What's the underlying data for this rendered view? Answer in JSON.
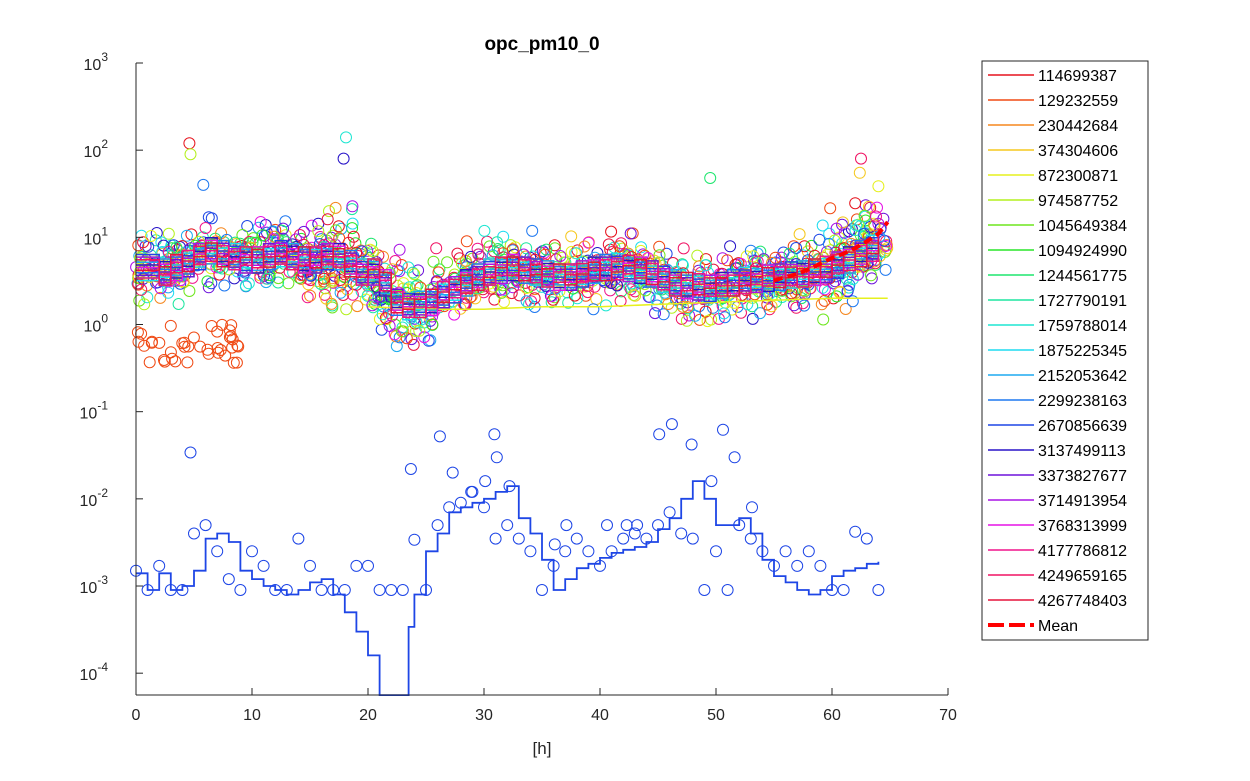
{
  "chart_data": {
    "type": "scatter",
    "title": "opc_pm10_0",
    "xlabel": "[h]",
    "ylabel": "",
    "xlim": [
      0,
      70
    ],
    "ylim": [
      5.62e-05,
      1000
    ],
    "yscale": "log",
    "x_ticks": [
      "0",
      "10",
      "20",
      "30",
      "40",
      "50",
      "60",
      "70"
    ],
    "y_ticks": [
      {
        "value": 0.0001,
        "base": "10",
        "exp": "-4"
      },
      {
        "value": 0.001,
        "base": "10",
        "exp": "-3"
      },
      {
        "value": 0.01,
        "base": "10",
        "exp": "-2"
      },
      {
        "value": 0.1,
        "base": "10",
        "exp": "-1"
      },
      {
        "value": 1,
        "base": "10",
        "exp": "0"
      },
      {
        "value": 10,
        "base": "10",
        "exp": "1"
      },
      {
        "value": 100,
        "base": "10",
        "exp": "2"
      },
      {
        "value": 1000,
        "base": "10",
        "exp": "3"
      }
    ],
    "grid": false,
    "legend_position": "outside-right",
    "series": [
      {
        "name": "114699387",
        "color": "#e6141e"
      },
      {
        "name": "129232559",
        "color": "#f04a14"
      },
      {
        "name": "230442684",
        "color": "#f5871e"
      },
      {
        "name": "374304606",
        "color": "#f5c81e"
      },
      {
        "name": "872300871",
        "color": "#e6f01e"
      },
      {
        "name": "974587752",
        "color": "#b4f01e"
      },
      {
        "name": "1045649384",
        "color": "#6ee61e"
      },
      {
        "name": "1094924990",
        "color": "#28e628"
      },
      {
        "name": "1244561775",
        "color": "#1ee66e"
      },
      {
        "name": "1727790191",
        "color": "#1ee6a0"
      },
      {
        "name": "1759788014",
        "color": "#1ee6d2"
      },
      {
        "name": "1875225345",
        "color": "#1edcf0"
      },
      {
        "name": "2152053642",
        "color": "#1eaaf0"
      },
      {
        "name": "2299238163",
        "color": "#1e78f0"
      },
      {
        "name": "2670856639",
        "color": "#1e46e6"
      },
      {
        "name": "3137499113",
        "color": "#2814c8"
      },
      {
        "name": "3373827677",
        "color": "#6e14dc"
      },
      {
        "name": "3714913954",
        "color": "#aa14e6"
      },
      {
        "name": "3768313999",
        "color": "#e614e6"
      },
      {
        "name": "4177786812",
        "color": "#f0148c"
      },
      {
        "name": "4249659165",
        "color": "#f01464"
      },
      {
        "name": "4267748403",
        "color": "#e6143c"
      },
      {
        "name": "Mean",
        "color": "#ff0000",
        "style": "dashed"
      }
    ],
    "lines": {
      "upper_line_x": [
        0,
        2,
        3,
        4,
        5,
        6,
        7,
        8,
        9,
        10,
        11,
        12,
        13,
        14,
        15,
        16,
        17,
        18,
        19,
        20,
        21,
        22,
        23,
        24,
        25,
        26,
        27,
        28,
        29,
        30,
        31,
        32,
        33,
        34,
        35,
        36,
        37,
        38,
        39,
        40,
        41,
        42,
        43,
        44,
        45,
        46,
        47,
        48,
        49,
        50,
        51,
        52,
        53,
        54,
        55,
        56,
        57,
        58,
        59,
        60,
        61,
        62,
        63,
        64
      ],
      "upper_line_y": [
        4.5,
        4,
        4.5,
        5,
        6,
        7,
        6.5,
        6,
        5.5,
        5.5,
        6,
        6.5,
        6,
        5.5,
        5.5,
        6,
        6,
        5,
        4,
        4,
        3,
        1.8,
        1.6,
        1.7,
        1.8,
        2.2,
        2.5,
        3,
        3.5,
        4,
        4.2,
        4.5,
        4.2,
        4,
        3.8,
        3.5,
        3.5,
        3.8,
        4.2,
        4.5,
        4.6,
        4.4,
        4.2,
        3.8,
        3.3,
        3,
        2.8,
        2.7,
        2.6,
        2.8,
        3,
        3.2,
        3.3,
        3.4,
        3.5,
        3.7,
        3.8,
        4,
        4.3,
        4.8,
        5.5,
        6.5,
        7.5,
        9
      ],
      "mean_x": [
        55,
        56,
        57,
        58,
        59,
        60,
        61,
        62,
        63,
        64,
        64.8
      ],
      "mean_y": [
        3.2,
        3.5,
        3.8,
        4.3,
        5,
        5.8,
        6.5,
        7.5,
        9,
        11,
        15
      ],
      "yellow_x": [
        20,
        25,
        30,
        35,
        40,
        45,
        50,
        55,
        60,
        64.8
      ],
      "yellow_y": [
        1.6,
        1.5,
        1.5,
        1.6,
        1.6,
        1.7,
        1.8,
        1.9,
        2,
        2
      ],
      "lower_step_x": [
        0,
        1,
        2,
        3,
        4,
        5,
        6,
        7,
        8,
        9,
        10,
        11,
        12,
        13,
        14,
        15,
        16,
        17,
        18,
        19,
        20,
        21,
        22,
        23,
        23.5,
        24,
        25,
        26,
        27,
        28,
        29,
        30,
        31,
        32,
        33,
        34,
        35,
        36,
        37,
        38,
        39,
        40,
        41,
        42,
        43,
        44,
        45,
        46,
        47,
        48,
        49,
        50,
        51,
        52,
        53,
        54,
        55,
        56,
        57,
        58,
        59,
        60,
        61,
        62,
        63,
        64
      ],
      "lower_step_y": [
        0.0014,
        0.0009,
        0.0014,
        0.0009,
        0.001,
        0.0015,
        0.0035,
        0.004,
        0.0032,
        0.0015,
        0.0012,
        0.001,
        0.0009,
        0.0008,
        0.0009,
        0.0011,
        0.0012,
        0.0008,
        0.0005,
        0.0003,
        0.00016,
        5.6e-05,
        5.6e-05,
        5.6e-05,
        0.00034,
        0.0008,
        0.0025,
        0.004,
        0.007,
        0.008,
        0.009,
        0.01,
        0.012,
        0.014,
        0.006,
        0.004,
        0.002,
        0.0009,
        0.0012,
        0.0016,
        0.0018,
        0.0021,
        0.0024,
        0.0026,
        0.0028,
        0.0032,
        0.0045,
        0.006,
        0.01,
        0.016,
        0.01,
        0.005,
        0.005,
        0.006,
        0.004,
        0.002,
        0.0013,
        0.0011,
        0.0009,
        0.0008,
        0.0009,
        0.0013,
        0.0015,
        0.0016,
        0.0018,
        0.0019
      ]
    },
    "lower_points": {
      "x": [
        0,
        1,
        2,
        3,
        4,
        5,
        6,
        7,
        8,
        9,
        10,
        11,
        12,
        13,
        14,
        15,
        16,
        17,
        18,
        19,
        20,
        21,
        22,
        23,
        24,
        25,
        26,
        27,
        28,
        29,
        30,
        31,
        32,
        33,
        34,
        35,
        36,
        37,
        38,
        39,
        40,
        41,
        42,
        43,
        44,
        45,
        46,
        47,
        48,
        49,
        50,
        51,
        52,
        53,
        54,
        55,
        56,
        57,
        58,
        59,
        60,
        61,
        62,
        63,
        64,
        4.7,
        26.2,
        30.9,
        23.7,
        27.3,
        31.1,
        45.1,
        46.2,
        47.9,
        50.6,
        51.6,
        49.6,
        30.1,
        28.9,
        32.2,
        42.3,
        43.2,
        53.1,
        37.1,
        36.1,
        40.6
      ],
      "y": [
        0.0015,
        0.0009,
        0.0017,
        0.0009,
        0.0009,
        0.004,
        0.005,
        0.0025,
        0.0012,
        0.0009,
        0.0025,
        0.0017,
        0.0009,
        0.0009,
        0.0035,
        0.0017,
        0.0009,
        0.0009,
        0.0009,
        0.0017,
        0.0017,
        0.0009,
        0.0009,
        0.0009,
        0.0034,
        0.0009,
        0.005,
        0.008,
        0.009,
        0.012,
        0.008,
        0.0035,
        0.005,
        0.0035,
        0.0025,
        0.0009,
        0.0017,
        0.0025,
        0.0035,
        0.0025,
        0.0017,
        0.0025,
        0.0035,
        0.004,
        0.0035,
        0.005,
        0.007,
        0.004,
        0.0035,
        0.0009,
        0.0025,
        0.0009,
        0.005,
        0.0035,
        0.0025,
        0.0017,
        0.0025,
        0.0017,
        0.0025,
        0.0017,
        0.0009,
        0.0009,
        0.0042,
        0.0035,
        0.0009,
        0.034,
        0.052,
        0.055,
        0.022,
        0.02,
        0.03,
        0.055,
        0.072,
        0.042,
        0.062,
        0.03,
        0.016,
        0.016,
        0.012,
        0.014,
        0.005,
        0.005,
        0.008,
        0.005,
        0.003,
        0.005
      ]
    },
    "upper_points_note": "Dense cluster of circle markers from all colored series between about 0.3 and 130 across x = 0 to 65"
  }
}
